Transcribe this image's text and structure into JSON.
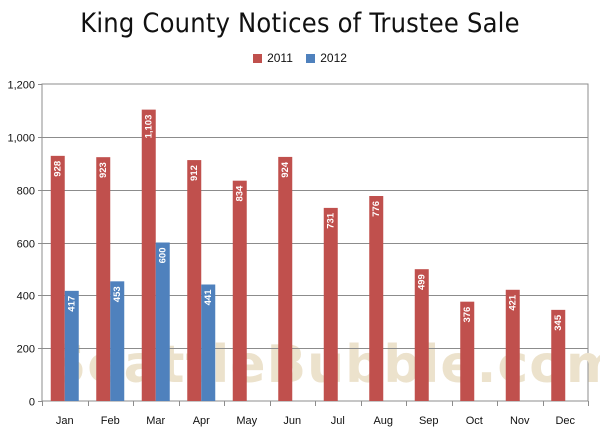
{
  "chart_data": {
    "type": "bar",
    "title": "King County Notices of Trustee Sale",
    "categories": [
      "Jan",
      "Feb",
      "Mar",
      "Apr",
      "May",
      "Jun",
      "Jul",
      "Aug",
      "Sep",
      "Oct",
      "Nov",
      "Dec"
    ],
    "series": [
      {
        "name": "2011",
        "color": "#c0504d",
        "values": [
          928,
          923,
          1103,
          912,
          834,
          924,
          731,
          776,
          499,
          376,
          421,
          345
        ],
        "labels": [
          "928",
          "923",
          "1,103",
          "912",
          "834",
          "924",
          "731",
          "776",
          "499",
          "376",
          "421",
          "345"
        ]
      },
      {
        "name": "2012",
        "color": "#4f81bd",
        "values": [
          417,
          453,
          600,
          441,
          null,
          null,
          null,
          null,
          null,
          null,
          null,
          null
        ],
        "labels": [
          "417",
          "453",
          "600",
          "441",
          "",
          "",
          "",
          "",
          "",
          "",
          "",
          ""
        ]
      }
    ],
    "ylim": [
      0,
      1200
    ],
    "yticks": [
      0,
      200,
      400,
      600,
      800,
      1000,
      1200
    ],
    "ytick_labels": [
      "0",
      "200",
      "400",
      "600",
      "800",
      "1,000",
      "1,200"
    ],
    "grid": true,
    "legend_position": "top-center",
    "watermark": "SeattleBubble.com"
  }
}
